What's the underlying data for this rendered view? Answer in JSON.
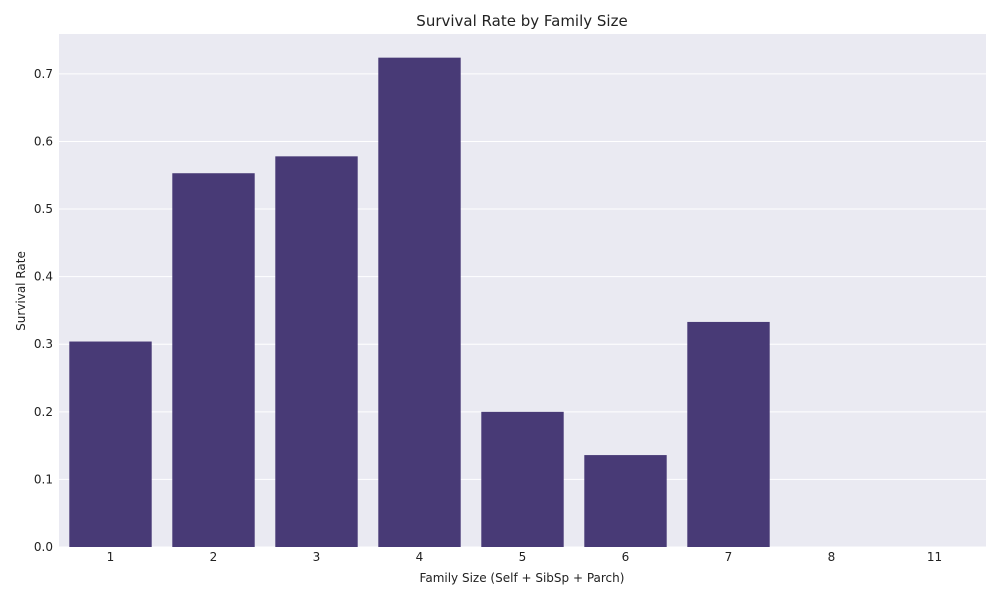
{
  "chart_data": {
    "type": "bar",
    "title": "Survival Rate by Family Size",
    "xlabel": "Family Size (Self + SibSp + Parch)",
    "ylabel": "Survival Rate",
    "categories": [
      "1",
      "2",
      "3",
      "4",
      "5",
      "6",
      "7",
      "8",
      "11"
    ],
    "values": [
      0.304,
      0.553,
      0.578,
      0.724,
      0.2,
      0.136,
      0.333,
      0.0,
      0.0
    ],
    "ylim": [
      0,
      0.759
    ],
    "yticks": [
      0.0,
      0.1,
      0.2,
      0.3,
      0.4,
      0.5,
      0.6,
      0.7
    ],
    "ytick_labels": [
      "0.0",
      "0.1",
      "0.2",
      "0.3",
      "0.4",
      "0.5",
      "0.6",
      "0.7"
    ],
    "grid": true,
    "colors": {
      "bar": "#483A76",
      "plot_background": "#EAEAF2",
      "grid": "#FFFFFF"
    }
  }
}
